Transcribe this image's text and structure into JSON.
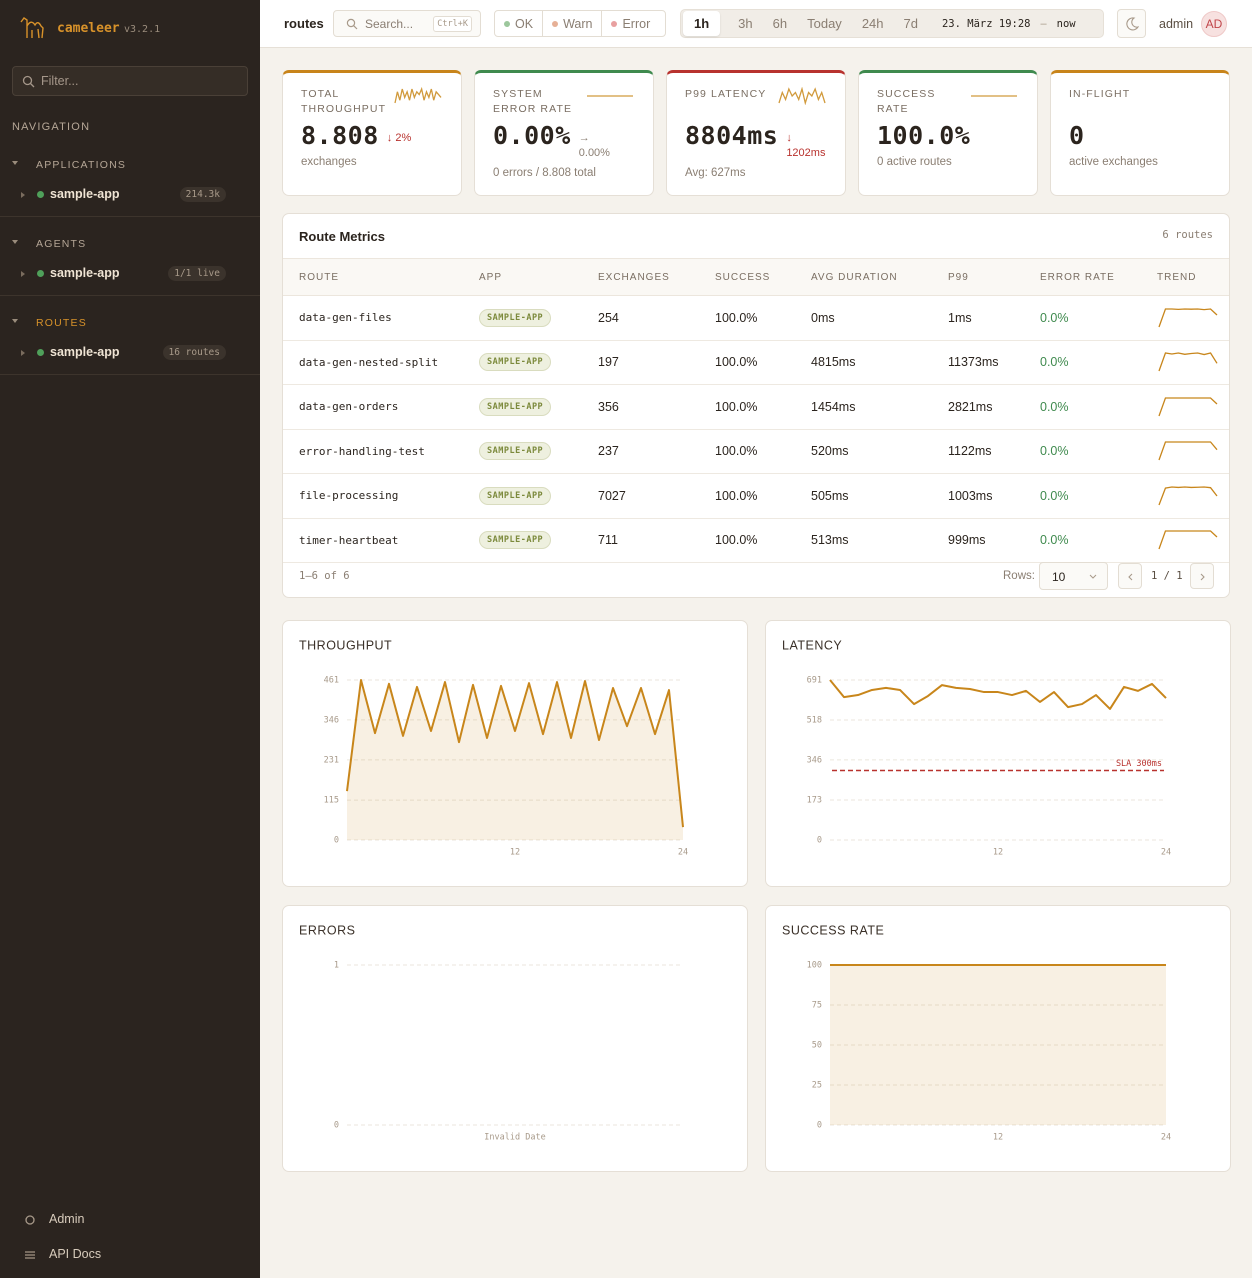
{
  "sidebar": {
    "brand": "cameleer",
    "version": "v3.2.1",
    "filter": "Filter...",
    "nav_heading": "NAVIGATION",
    "sections": [
      {
        "title": "APPLICATIONS",
        "items": [
          {
            "label": "sample-app",
            "badge": "214.3k"
          }
        ]
      },
      {
        "title": "AGENTS",
        "items": [
          {
            "label": "sample-app",
            "badge": "1/1 live"
          }
        ]
      },
      {
        "title": "ROUTES",
        "items": [
          {
            "label": "sample-app",
            "badge": "16 routes"
          }
        ]
      }
    ],
    "footer": [
      "Admin",
      "API Docs"
    ]
  },
  "topbar": {
    "page": "routes",
    "search": "Search... ",
    "shortcut": "Ctrl+K",
    "status_filters": [
      "OK",
      "Warn",
      "Error"
    ],
    "ranges": [
      "1h",
      "3h",
      "6h",
      "Today",
      "24h",
      "7d"
    ],
    "from": "23. März 19:28",
    "separator": "–",
    "to": "now",
    "user": "admin",
    "avatar": "AD"
  },
  "kpis": [
    {
      "label": "TOTAL THROUGHPUT",
      "value": "8.808",
      "delta": "↓ 2%",
      "delta_color": "#b8322e",
      "sub": "exchanges",
      "color": "#c8841a",
      "sparkline": [
        4,
        8,
        5,
        9,
        6,
        8,
        5,
        9,
        6,
        8,
        7,
        9,
        5,
        8,
        6,
        9,
        5,
        8,
        7,
        6
      ]
    },
    {
      "label": "SYSTEM ERROR RATE",
      "value": "0.00%",
      "delta": "→ 0.00%",
      "delta_color": "#8a7e72",
      "sub": "0 errors / 8.808 total",
      "color": "#3f8a4e",
      "sparkline": [
        0,
        0,
        0,
        0,
        0,
        0,
        0,
        0,
        0,
        0
      ]
    },
    {
      "label": "P99 LATENCY",
      "value": "8804ms",
      "delta": "↓ 1202ms",
      "delta_color": "#b8322e",
      "sub": "Avg: 627ms",
      "color": "#b8322e",
      "sparkline": [
        5,
        8,
        6,
        9,
        7,
        8,
        6,
        9,
        5,
        8,
        7,
        9,
        6,
        8,
        5
      ]
    },
    {
      "label": "SUCCESS RATE",
      "value": "100.0%",
      "sub": "0 active routes",
      "color": "#3f8a4e",
      "sparkline": [
        100,
        100,
        100,
        100,
        100,
        100,
        100,
        100,
        100,
        100
      ]
    },
    {
      "label": "IN-FLIGHT",
      "value": "0",
      "sub": "active exchanges",
      "color": "#c8841a"
    }
  ],
  "table": {
    "title": "Route Metrics",
    "count": "6 routes",
    "columns": [
      "ROUTE",
      "APP",
      "EXCHANGES",
      "SUCCESS",
      "AVG DURATION",
      "P99",
      "ERROR RATE",
      "TREND"
    ],
    "rows": [
      [
        "data-gen-files",
        "SAMPLE-APP",
        "254",
        "100.0%",
        "0ms",
        "1ms",
        "0.0%"
      ],
      [
        "data-gen-nested-split",
        "SAMPLE-APP",
        "197",
        "100.0%",
        "4815ms",
        "11373ms",
        "0.0%"
      ],
      [
        "data-gen-orders",
        "SAMPLE-APP",
        "356",
        "100.0%",
        "1454ms",
        "2821ms",
        "0.0%"
      ],
      [
        "error-handling-test",
        "SAMPLE-APP",
        "237",
        "100.0%",
        "520ms",
        "1122ms",
        "0.0%"
      ],
      [
        "file-processing",
        "SAMPLE-APP",
        "7027",
        "100.0%",
        "505ms",
        "1003ms",
        "0.0%"
      ],
      [
        "timer-heartbeat",
        "SAMPLE-APP",
        "711",
        "100.0%",
        "513ms",
        "999ms",
        "0.0%"
      ]
    ],
    "trends": [
      [
        0,
        9,
        9,
        8.8,
        9,
        8.9,
        9,
        8.7,
        9,
        6
      ],
      [
        2,
        9,
        8.6,
        9,
        8.5,
        8.8,
        9,
        8.4,
        9,
        5
      ],
      [
        0,
        9,
        9,
        9,
        9,
        9,
        9,
        9,
        9,
        6
      ],
      [
        2,
        9,
        9,
        9,
        9,
        9,
        9,
        9,
        9,
        6
      ],
      [
        1,
        8.5,
        9,
        8.8,
        9,
        8.8,
        8.9,
        9,
        8.7,
        5
      ],
      [
        0,
        9,
        9,
        9,
        9,
        9,
        9,
        9,
        9,
        6
      ]
    ],
    "range": "1–6 of 6",
    "rows_label": "Rows:",
    "rows_per_page": "10",
    "page": "1 / 1"
  },
  "chart_data": [
    {
      "type": "line",
      "title": "THROUGHPUT",
      "area": true,
      "color": "#c8861b",
      "x": [
        0,
        1,
        2,
        3,
        4,
        5,
        6,
        7,
        8,
        9,
        10,
        11,
        12,
        13,
        14,
        15,
        16,
        17,
        18,
        19,
        20,
        21,
        22,
        23,
        24
      ],
      "values": [
        141,
        461,
        308,
        450,
        300,
        441,
        314,
        455,
        282,
        447,
        294,
        444,
        314,
        452,
        305,
        455,
        294,
        458,
        288,
        438,
        328,
        438,
        305,
        432,
        37
      ],
      "xlim": [
        0,
        24
      ],
      "xticks": [
        12,
        24
      ],
      "ylim": [
        0,
        461
      ],
      "yticks": [
        0,
        115,
        231,
        346,
        461
      ]
    },
    {
      "type": "line",
      "title": "LATENCY",
      "area": false,
      "color": "#c8861b",
      "x": [
        0,
        1,
        2,
        3,
        4,
        5,
        6,
        7,
        8,
        9,
        10,
        11,
        12,
        13,
        14,
        15,
        16,
        17,
        18,
        19,
        20,
        21,
        22,
        23,
        24
      ],
      "values": [
        691,
        617,
        626,
        648,
        657,
        648,
        587,
        622,
        669,
        657,
        652,
        639,
        639,
        626,
        644,
        596,
        639,
        574,
        587,
        626,
        566,
        661,
        644,
        674,
        613
      ],
      "xlim": [
        0,
        24
      ],
      "xticks": [
        12,
        24
      ],
      "ylim": [
        0,
        691
      ],
      "yticks": [
        0,
        173,
        346,
        518,
        691
      ],
      "annotations": [
        {
          "value": 300,
          "label": "SLA 300ms",
          "color": "#b8322e"
        }
      ]
    },
    {
      "type": "line",
      "title": "ERRORS",
      "area": false,
      "color": "#c8861b",
      "x": [],
      "values": [],
      "ylim": [
        0,
        1
      ],
      "yticks": [
        0,
        1
      ],
      "xlabel": "Invalid Date"
    },
    {
      "type": "line",
      "title": "SUCCESS RATE",
      "area": true,
      "color": "#c8861b",
      "x": [
        0,
        1,
        2,
        3,
        4,
        5,
        6,
        7,
        8,
        9,
        10,
        11,
        12,
        13,
        14,
        15,
        16,
        17,
        18,
        19,
        20,
        21,
        22,
        23,
        24
      ],
      "values": [
        100,
        100,
        100,
        100,
        100,
        100,
        100,
        100,
        100,
        100,
        100,
        100,
        100,
        100,
        100,
        100,
        100,
        100,
        100,
        100,
        100,
        100,
        100,
        100,
        100
      ],
      "xlim": [
        0,
        24
      ],
      "xticks": [
        12,
        24
      ],
      "ylim": [
        0,
        100
      ],
      "yticks": [
        0,
        25,
        50,
        75,
        100
      ]
    }
  ]
}
